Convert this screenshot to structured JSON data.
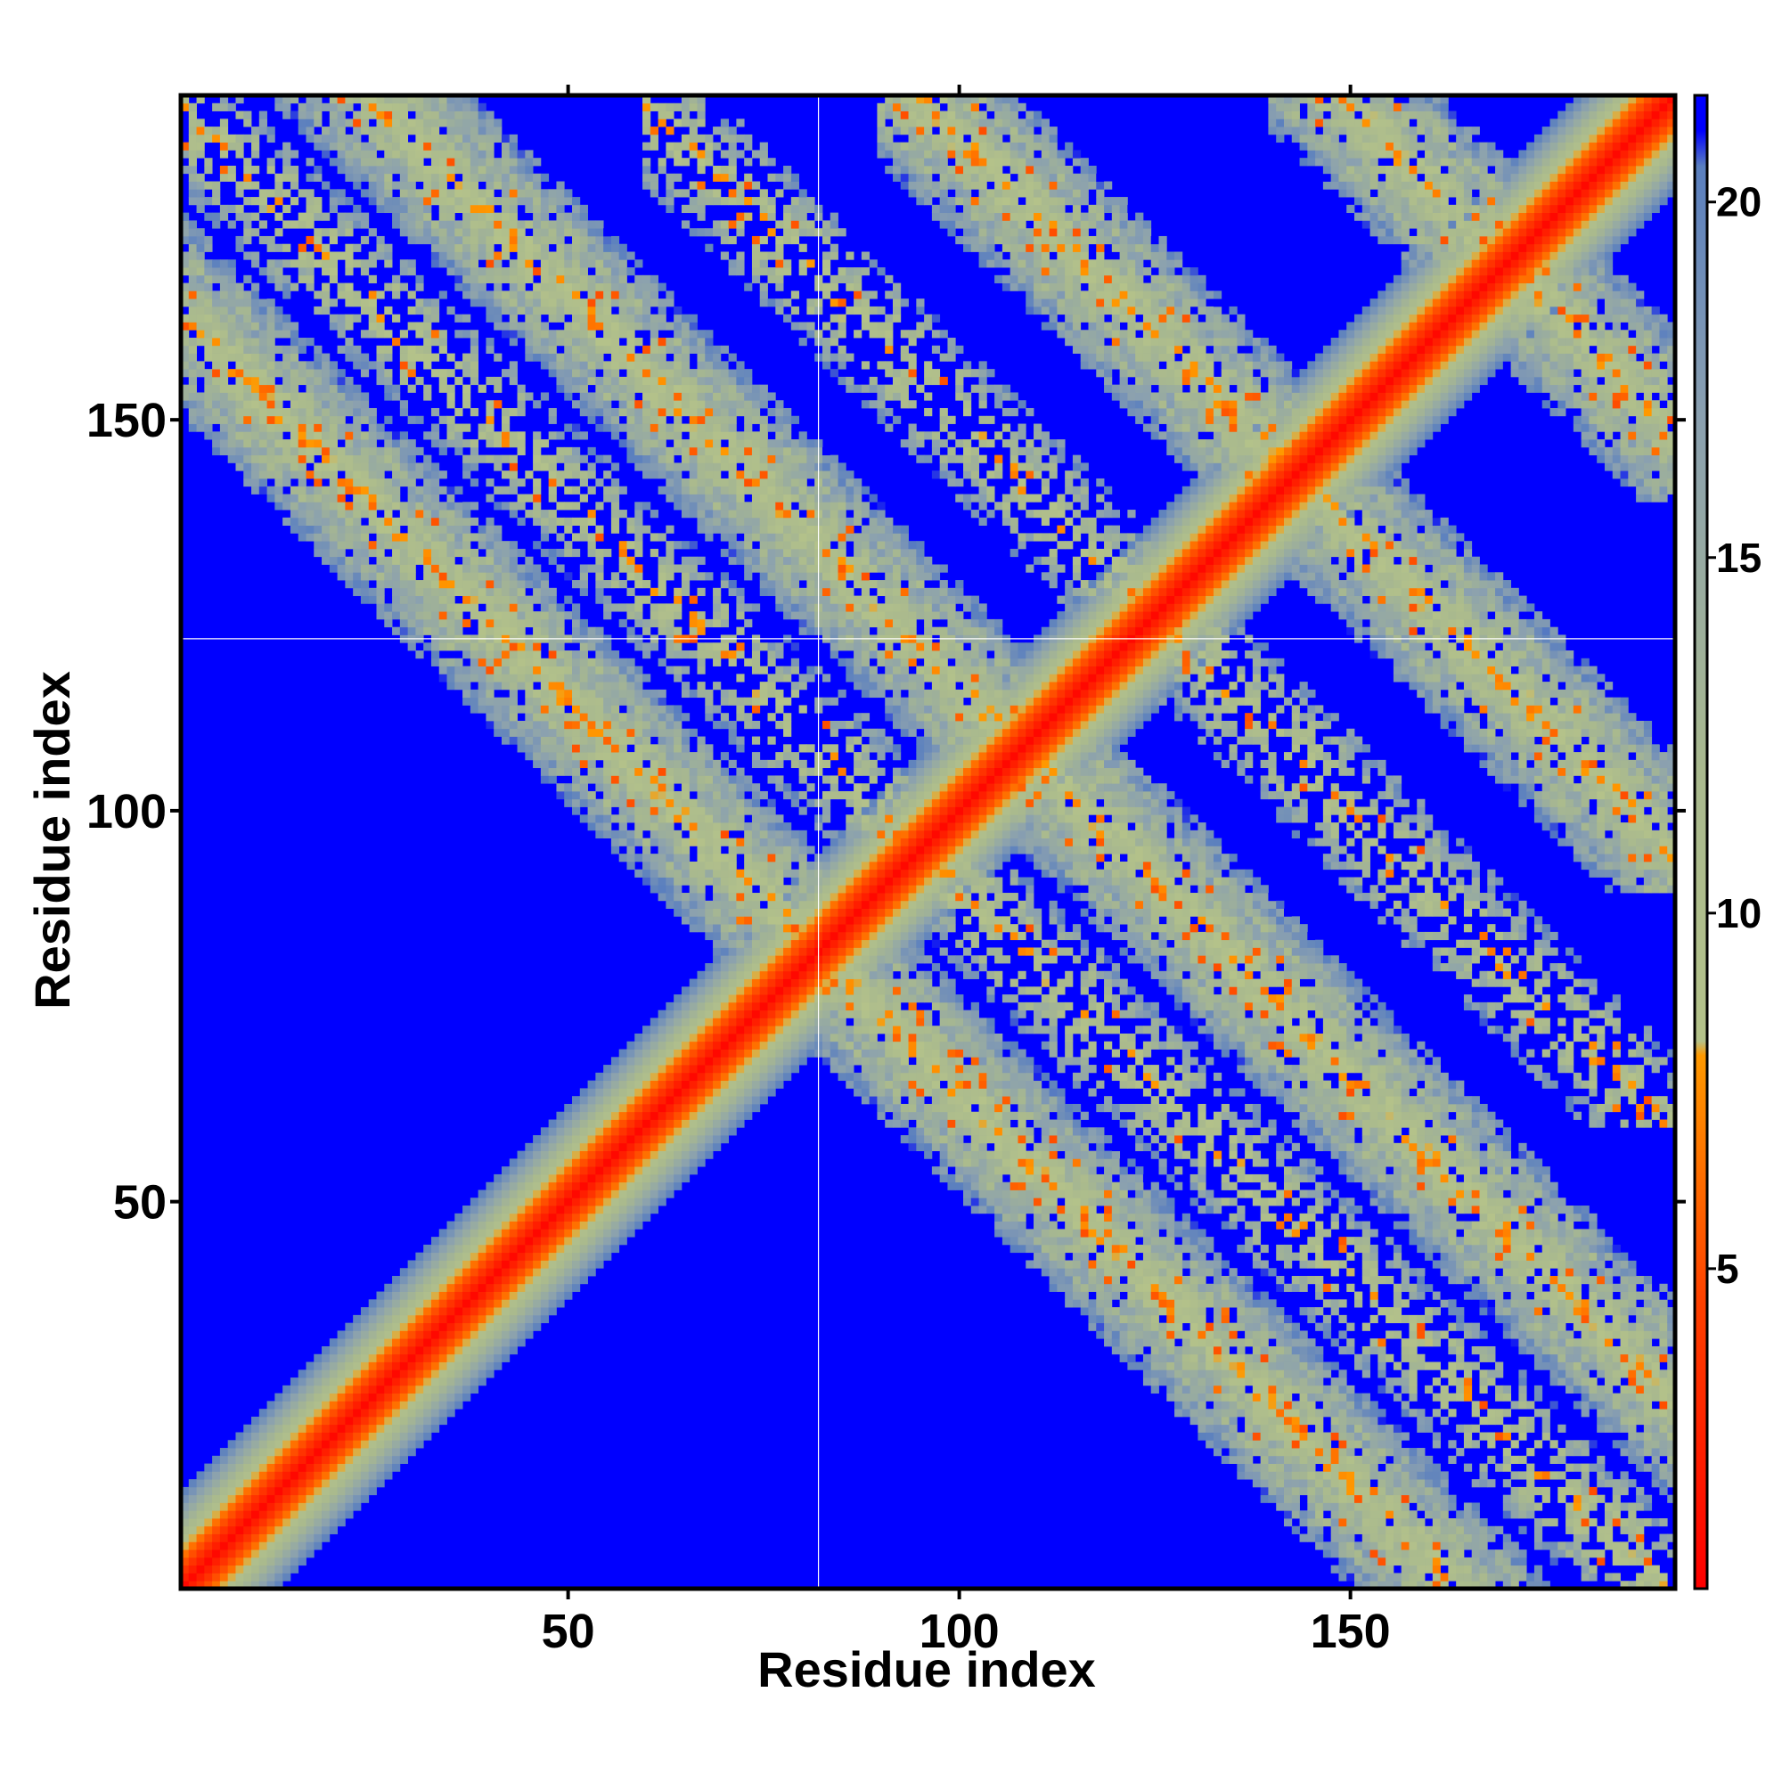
{
  "chart_data": {
    "type": "heatmap",
    "title": "",
    "xlabel": "Residue index",
    "ylabel": "Residue index",
    "n_residues": 191,
    "xlim": [
      1,
      191
    ],
    "ylim": [
      1,
      191
    ],
    "x_ticks": [
      50,
      100,
      150
    ],
    "y_ticks": [
      50,
      100,
      150
    ],
    "x_tick_labels": [
      "50",
      "100",
      "150"
    ],
    "y_tick_labels": [
      "50",
      "100",
      "150"
    ],
    "grid": false,
    "reference_lines": {
      "x": 82,
      "y": 122
    },
    "colorbar": {
      "placement": "right",
      "range": [
        0.5,
        21.5
      ],
      "ticks": [
        5,
        10,
        15,
        20
      ],
      "tick_labels": [
        "5",
        "10",
        "15",
        "20"
      ],
      "stops": [
        {
          "value": 0.5,
          "color": "#ff0000"
        },
        {
          "value": 4.5,
          "color": "#ff4000"
        },
        {
          "value": 8.0,
          "color": "#ff9900"
        },
        {
          "value": 8.2,
          "color": "#b4c28a"
        },
        {
          "value": 12.0,
          "color": "#a9b98e"
        },
        {
          "value": 17.0,
          "color": "#8aa0b0"
        },
        {
          "value": 20.5,
          "color": "#5a7fbf"
        },
        {
          "value": 21.0,
          "color": "#0000ff"
        }
      ],
      "max_color": "#0000ff"
    },
    "contact_bands": [
      {
        "orientation": "diagonal",
        "offset": 0,
        "from": 1,
        "to": 191,
        "core_width": 6,
        "halo_width": 12
      },
      {
        "orientation": "antidiagonal",
        "sum": 164,
        "from": 1,
        "to": 191,
        "core_width": 7,
        "halo_width": 13
      },
      {
        "orientation": "antidiagonal",
        "sum": 216,
        "from": 1,
        "to": 191,
        "core_width": 7,
        "halo_width": 13
      },
      {
        "orientation": "antidiagonal",
        "sum": 286,
        "from": 90,
        "to": 191,
        "core_width": 7,
        "halo_width": 13
      },
      {
        "orientation": "antidiagonal",
        "sum": 340,
        "from": 140,
        "to": 191,
        "core_width": 7,
        "halo_width": 13
      },
      {
        "orientation": "antidiagonal",
        "sum": 190,
        "from": 1,
        "to": 191,
        "core_width": 5,
        "halo_width": 10,
        "sparse": true
      },
      {
        "orientation": "antidiagonal",
        "sum": 250,
        "from": 60,
        "to": 191,
        "core_width": 5,
        "halo_width": 10,
        "sparse": true
      }
    ]
  }
}
